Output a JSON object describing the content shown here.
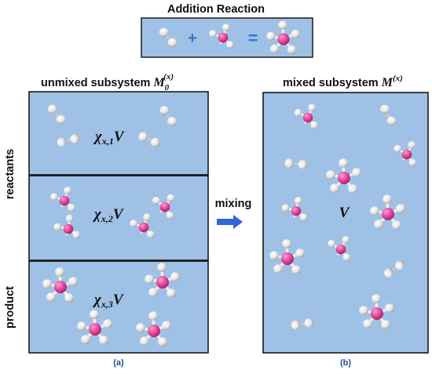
{
  "title": "Addition Reaction",
  "equation": {
    "plus": "+",
    "equals": "="
  },
  "left_panel": {
    "title_text": "unmixed subsystem ",
    "title_symbol": "M",
    "title_sub": "0",
    "title_sup": "(x)",
    "cells": [
      {
        "chi": "χ",
        "sub": "x,1",
        "vol": "V"
      },
      {
        "chi": "χ",
        "sub": "x,2",
        "vol": "V"
      },
      {
        "chi": "χ",
        "sub": "x,3",
        "vol": "V"
      }
    ],
    "side_labels": {
      "reactants": "reactants",
      "product": "product"
    },
    "caption": "(a)"
  },
  "arrow_label": "mixing",
  "right_panel": {
    "title_text": "mixed subsystem ",
    "title_symbol": "M",
    "title_sup": "(x)",
    "center": "V",
    "caption": "(b)"
  },
  "colors": {
    "box_fill": "#9fc1e6",
    "box_border": "#1a1a1a",
    "plus_equals": "#2f74d0",
    "arrow": "#2f67d6",
    "center_atom": "#e0449a",
    "white_atom": "#f0f0f0"
  }
}
